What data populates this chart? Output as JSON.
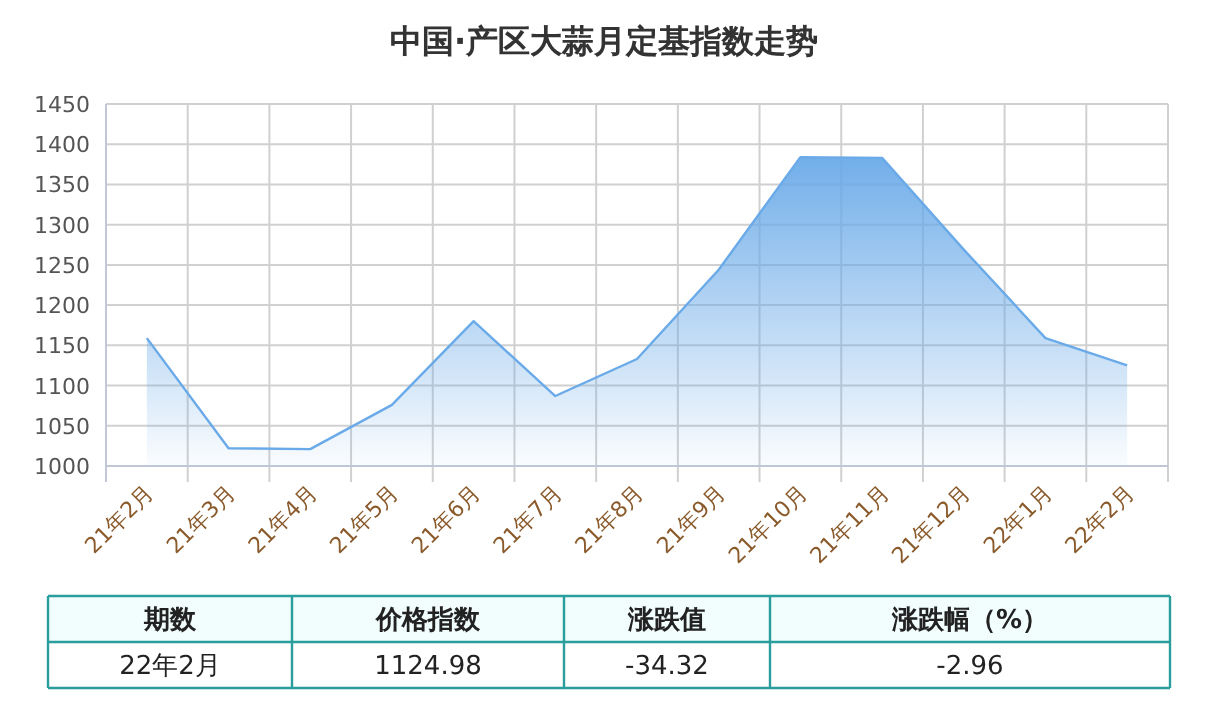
{
  "chart_data": {
    "type": "area",
    "title": "中国·产区大蒜月定基指数走势",
    "categories": [
      "21年2月",
      "21年3月",
      "21年4月",
      "21年5月",
      "21年6月",
      "21年7月",
      "21年8月",
      "21年9月",
      "21年10月",
      "21年11月",
      "21年12月",
      "22年1月",
      "22年2月"
    ],
    "values": [
      1159,
      1022,
      1021,
      1076,
      1180,
      1087,
      1133,
      1244,
      1384,
      1383,
      1269,
      1159,
      1124.98
    ],
    "color": "#6aaae8",
    "ylim": [
      1000,
      1450
    ],
    "yticks": [
      1000,
      1050,
      1100,
      1150,
      1200,
      1250,
      1300,
      1350,
      1400,
      1450
    ],
    "grid": true,
    "annotations": [
      "期数",
      "价格指数",
      "涨跌值",
      "涨跌幅（%）",
      "22年2月",
      "1124.98",
      "-34.32",
      "-2.96"
    ]
  }
}
